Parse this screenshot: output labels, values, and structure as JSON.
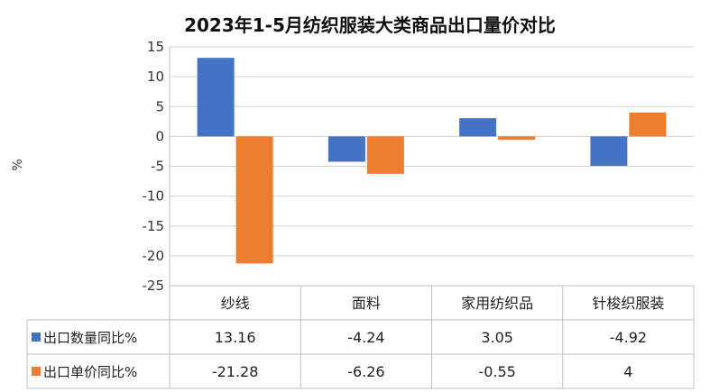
{
  "chart_data": {
    "type": "bar",
    "title": "2023年1-5月纺织服装大类商品出口量价对比",
    "ylabel": "%",
    "ylim": [
      -25,
      15
    ],
    "yticks": [
      15,
      10,
      5,
      0,
      -5,
      -10,
      -15,
      -20,
      -25
    ],
    "grid": true,
    "legend_position": "data-table",
    "categories": [
      "纱线",
      "面料",
      "家用纺织品",
      "针梭织服装"
    ],
    "series": [
      {
        "name": "出口数量同比%",
        "color": "#4472c4",
        "values": [
          13.16,
          -4.24,
          3.05,
          -4.92
        ],
        "labels": [
          "13.16",
          "-4.24",
          "3.05",
          "-4.92"
        ]
      },
      {
        "name": "出口单价同比%",
        "color": "#ed7d31",
        "values": [
          -21.28,
          -6.26,
          -0.55,
          4
        ],
        "labels": [
          "-21.28",
          "-6.26",
          "-0.55",
          "4"
        ]
      }
    ]
  }
}
